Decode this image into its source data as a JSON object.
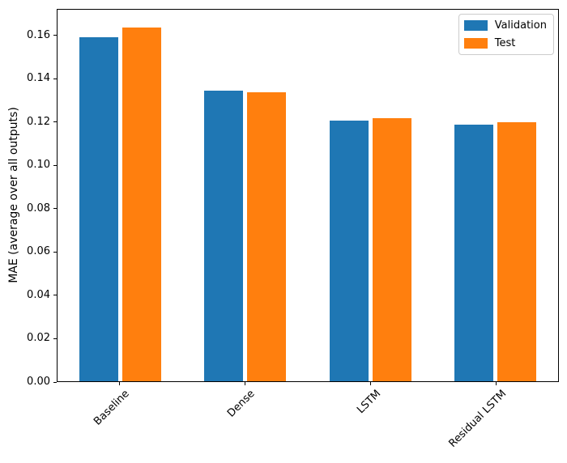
{
  "chart_data": {
    "type": "bar",
    "title": "",
    "categories": [
      "Baseline",
      "Dense",
      "LSTM",
      "Residual LSTM"
    ],
    "series": [
      {
        "name": "Validation",
        "color": "#1f77b4",
        "values": [
          0.1595,
          0.1348,
          0.1208,
          0.1188
        ]
      },
      {
        "name": "Test",
        "color": "#ff7f0e",
        "values": [
          0.164,
          0.1341,
          0.122,
          0.1199
        ]
      }
    ],
    "xlabel": "",
    "ylabel": "MAE (average over all outputs)",
    "ylim": [
      0,
      0.1722
    ],
    "ytick_labels": [
      "0.00",
      "0.02",
      "0.04",
      "0.06",
      "0.08",
      "0.10",
      "0.12",
      "0.14",
      "0.16"
    ],
    "grid": false,
    "x_tick_rotation_deg": 45,
    "legend": {
      "position": "upper-right",
      "entries": [
        "Validation",
        "Test"
      ]
    }
  }
}
